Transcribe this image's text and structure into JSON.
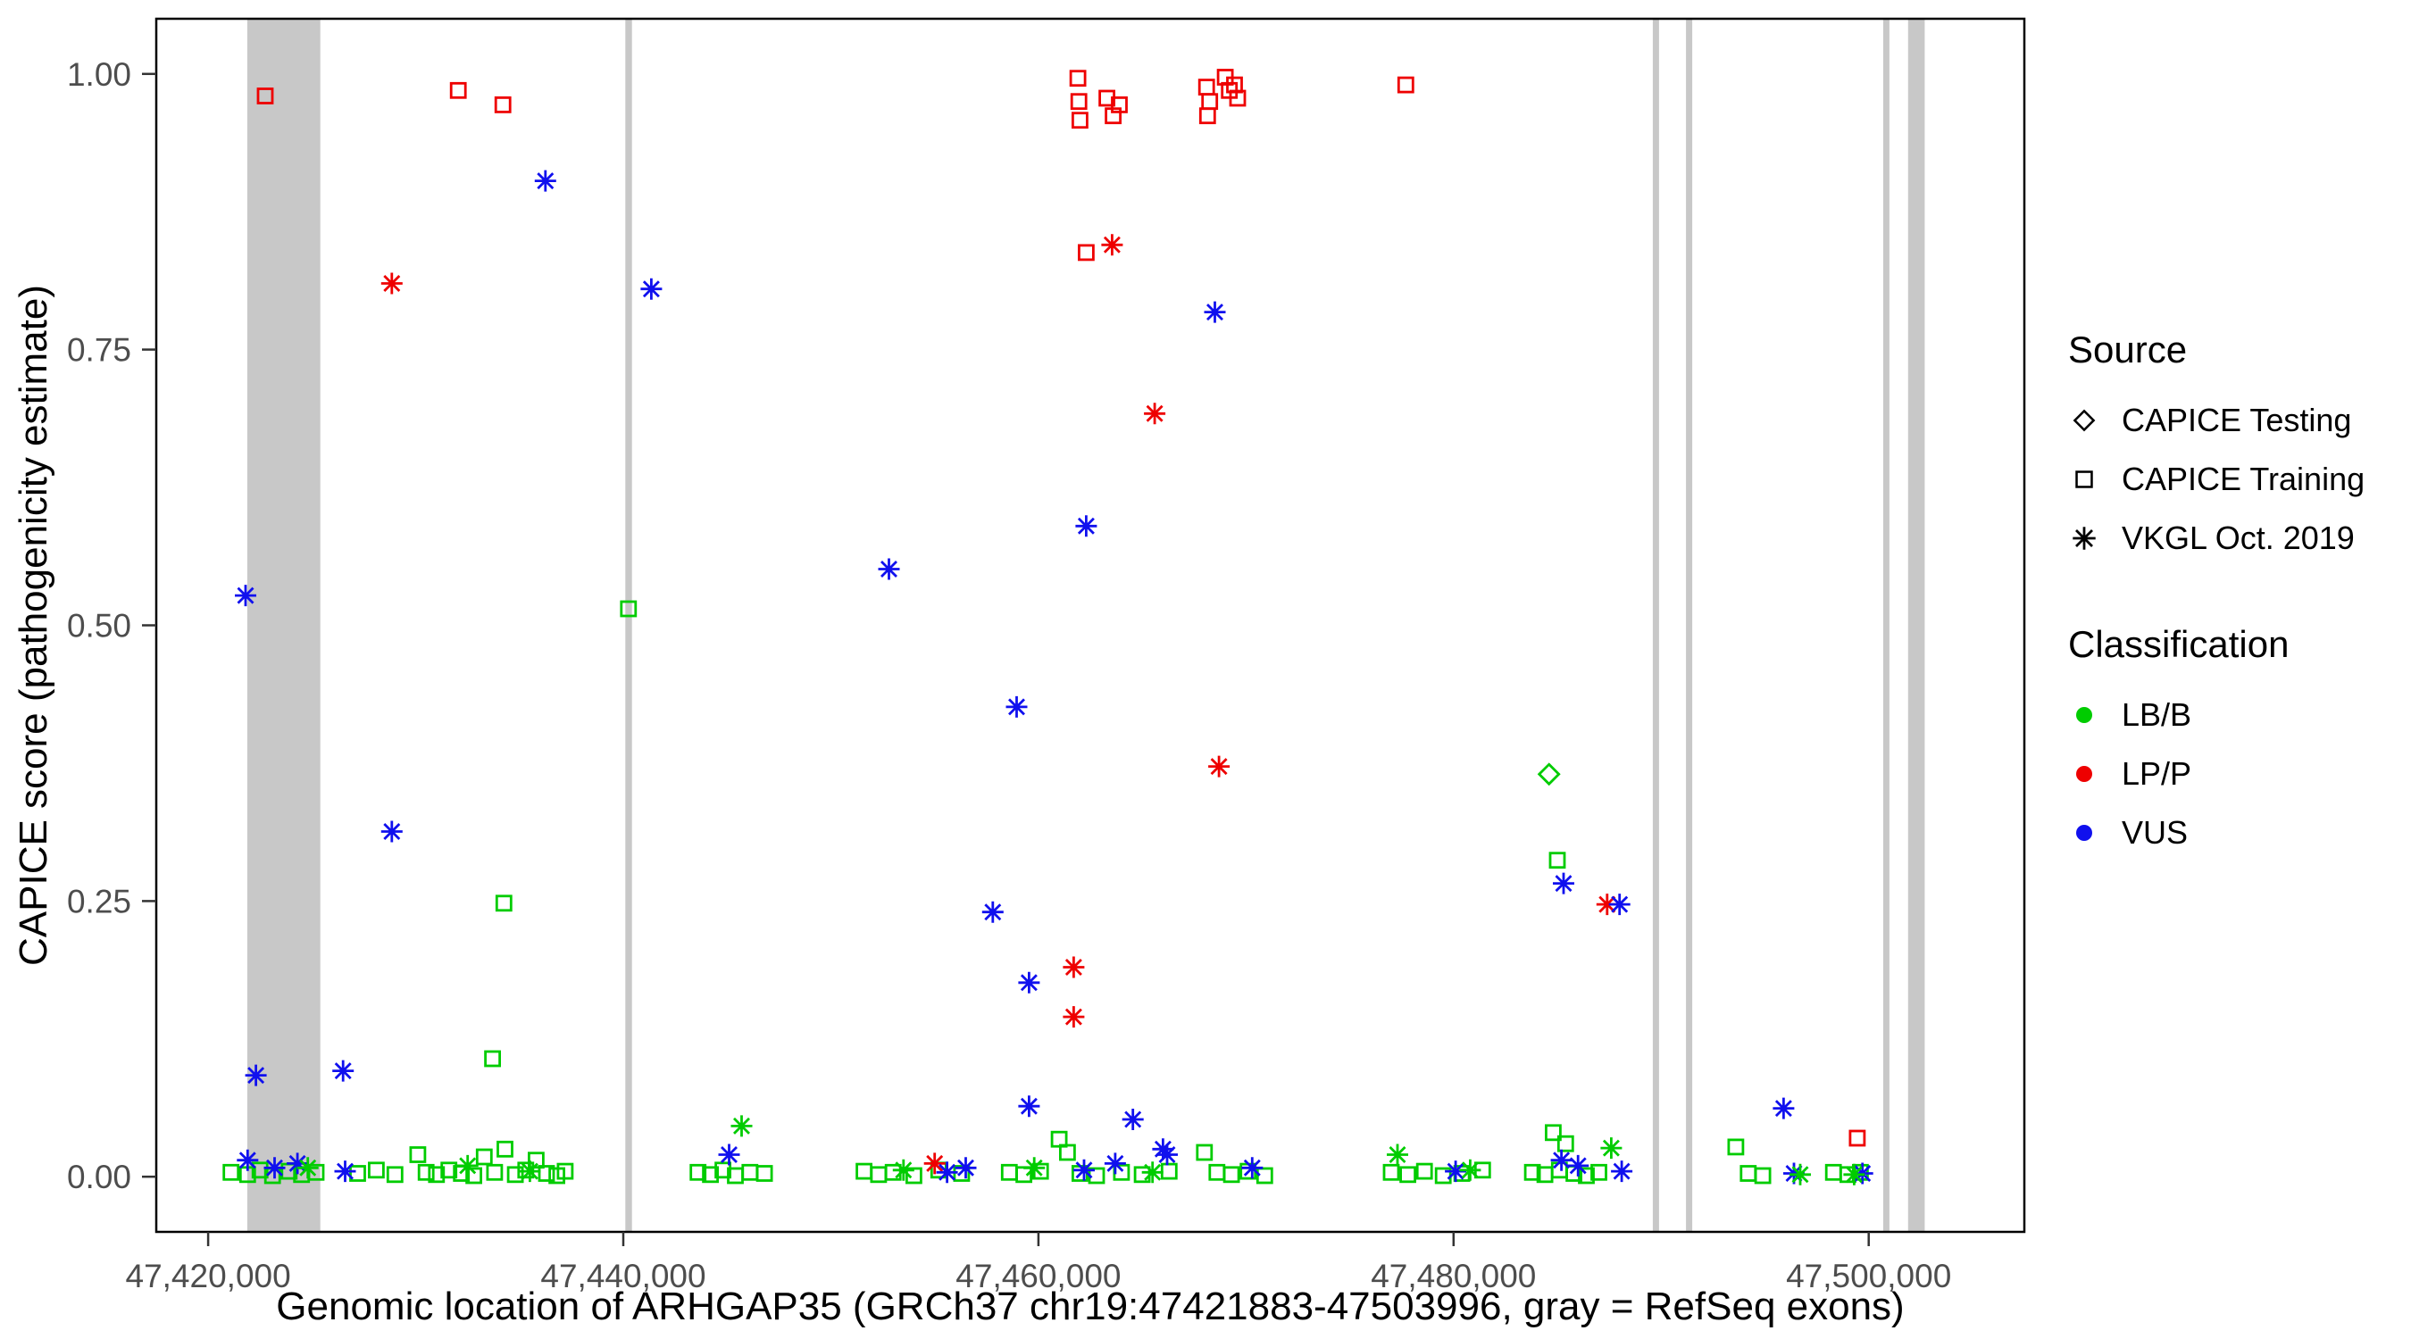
{
  "legend": {
    "source": {
      "title": "Source",
      "items": [
        {
          "label": "CAPICE Testing",
          "shape": "diamond"
        },
        {
          "label": "CAPICE Training",
          "shape": "square"
        },
        {
          "label": "VKGL Oct. 2019",
          "shape": "asterisk"
        }
      ]
    },
    "classification": {
      "title": "Classification",
      "items": [
        {
          "label": "LB/B",
          "color": "#00CC00"
        },
        {
          "label": "LP/P",
          "color": "#EE0000"
        },
        {
          "label": "VUS",
          "color": "#1010EE"
        }
      ]
    }
  },
  "chart_data": {
    "type": "scatter",
    "title": "",
    "xlabel": "Genomic location of ARHGAP35 (GRCh37 chr19:47421883-47503996, gray = RefSeq exons)",
    "ylabel": "CAPICE score (pathogenicity estimate)",
    "xlim": [
      47417500,
      47507500
    ],
    "ylim": [
      -0.05,
      1.05
    ],
    "grid": false,
    "legend_position": "right",
    "x_ticks": [
      {
        "value": 47420000,
        "label": "47,420,000"
      },
      {
        "value": 47440000,
        "label": "47,440,000"
      },
      {
        "value": 47460000,
        "label": "47,460,000"
      },
      {
        "value": 47480000,
        "label": "47,480,000"
      },
      {
        "value": 47500000,
        "label": "47,500,000"
      }
    ],
    "y_ticks": [
      {
        "value": 0.0,
        "label": "0.00"
      },
      {
        "value": 0.25,
        "label": "0.25"
      },
      {
        "value": 0.5,
        "label": "0.50"
      },
      {
        "value": 0.75,
        "label": "0.75"
      },
      {
        "value": 1.0,
        "label": "1.00"
      }
    ],
    "band_color": "#C8C8C8",
    "exon_bands": [
      [
        47421883,
        47425400
      ],
      [
        47440100,
        47440420
      ],
      [
        47489600,
        47489900
      ],
      [
        47491200,
        47491500
      ],
      [
        47500700,
        47501000
      ],
      [
        47501900,
        47502700
      ]
    ],
    "colors": {
      "LB/B": "#00CC00",
      "LP/P": "#EE0000",
      "VUS": "#1010EE"
    },
    "shape_by_source": {
      "CAPICE Testing": "diamond",
      "CAPICE Training": "square",
      "VKGL Oct. 2019": "asterisk"
    },
    "series": [
      {
        "source": "CAPICE Training",
        "classification": "LP/P",
        "shape": "square",
        "points": [
          [
            47422750,
            0.98
          ],
          [
            47432050,
            0.985
          ],
          [
            47434200,
            0.972
          ],
          [
            47461900,
            0.996
          ],
          [
            47461950,
            0.975
          ],
          [
            47462000,
            0.958
          ],
          [
            47463300,
            0.978
          ],
          [
            47463600,
            0.962
          ],
          [
            47463900,
            0.972
          ],
          [
            47468100,
            0.988
          ],
          [
            47468250,
            0.975
          ],
          [
            47468150,
            0.962
          ],
          [
            47469000,
            0.997
          ],
          [
            47469200,
            0.985
          ],
          [
            47469450,
            0.99
          ],
          [
            47469600,
            0.978
          ],
          [
            47477700,
            0.99
          ],
          [
            47462300,
            0.838
          ],
          [
            47499450,
            0.035
          ]
        ]
      },
      {
        "source": "CAPICE Training",
        "classification": "LB/B",
        "shape": "square",
        "points": [
          [
            47440250,
            0.515
          ],
          [
            47434250,
            0.248
          ],
          [
            47433700,
            0.107
          ],
          [
            47485000,
            0.287
          ],
          [
            47484800,
            0.04
          ],
          [
            47485400,
            0.03
          ],
          [
            47421100,
            0.004
          ],
          [
            47421900,
            0.002
          ],
          [
            47422500,
            0.006
          ],
          [
            47423100,
            0.001
          ],
          [
            47423900,
            0.005
          ],
          [
            47424500,
            0.002
          ],
          [
            47425200,
            0.004
          ],
          [
            47427200,
            0.003
          ],
          [
            47428100,
            0.006
          ],
          [
            47429000,
            0.002
          ],
          [
            47430100,
            0.02
          ],
          [
            47430500,
            0.004
          ],
          [
            47431000,
            0.002
          ],
          [
            47431600,
            0.006
          ],
          [
            47432200,
            0.003
          ],
          [
            47432800,
            0.001
          ],
          [
            47433300,
            0.018
          ],
          [
            47433800,
            0.004
          ],
          [
            47434300,
            0.025
          ],
          [
            47434800,
            0.002
          ],
          [
            47435300,
            0.006
          ],
          [
            47435800,
            0.015
          ],
          [
            47436300,
            0.003
          ],
          [
            47436800,
            0.001
          ],
          [
            47437200,
            0.005
          ],
          [
            47443600,
            0.004
          ],
          [
            47444200,
            0.002
          ],
          [
            47444800,
            0.006
          ],
          [
            47445400,
            0.001
          ],
          [
            47446100,
            0.004
          ],
          [
            47446800,
            0.003
          ],
          [
            47451600,
            0.005
          ],
          [
            47452300,
            0.002
          ],
          [
            47453000,
            0.004
          ],
          [
            47454000,
            0.001
          ],
          [
            47455200,
            0.006
          ],
          [
            47456300,
            0.003
          ],
          [
            47458600,
            0.004
          ],
          [
            47459300,
            0.002
          ],
          [
            47460100,
            0.005
          ],
          [
            47461000,
            0.034
          ],
          [
            47461400,
            0.022
          ],
          [
            47462000,
            0.003
          ],
          [
            47462800,
            0.001
          ],
          [
            47464000,
            0.004
          ],
          [
            47465000,
            0.002
          ],
          [
            47466300,
            0.005
          ],
          [
            47468000,
            0.022
          ],
          [
            47468600,
            0.004
          ],
          [
            47469300,
            0.002
          ],
          [
            47470100,
            0.005
          ],
          [
            47470900,
            0.001
          ],
          [
            47477000,
            0.004
          ],
          [
            47477800,
            0.002
          ],
          [
            47478600,
            0.005
          ],
          [
            47479500,
            0.001
          ],
          [
            47480400,
            0.003
          ],
          [
            47481400,
            0.006
          ],
          [
            47483800,
            0.004
          ],
          [
            47484400,
            0.002
          ],
          [
            47485100,
            0.006
          ],
          [
            47485800,
            0.003
          ],
          [
            47486400,
            0.001
          ],
          [
            47487000,
            0.004
          ],
          [
            47493600,
            0.027
          ],
          [
            47494200,
            0.003
          ],
          [
            47494900,
            0.001
          ],
          [
            47498300,
            0.004
          ],
          [
            47499000,
            0.002
          ],
          [
            47499600,
            0.004
          ]
        ]
      },
      {
        "source": "CAPICE Testing",
        "classification": "LB/B",
        "shape": "diamond",
        "points": [
          [
            47484600,
            0.365
          ]
        ]
      },
      {
        "source": "VKGL Oct. 2019",
        "classification": "LP/P",
        "shape": "asterisk",
        "points": [
          [
            47428850,
            0.81
          ],
          [
            47463550,
            0.845
          ],
          [
            47465600,
            0.692
          ],
          [
            47468700,
            0.372
          ],
          [
            47461700,
            0.19
          ],
          [
            47461700,
            0.145
          ],
          [
            47487400,
            0.247
          ],
          [
            47455000,
            0.012
          ]
        ]
      },
      {
        "source": "VKGL Oct. 2019",
        "classification": "VUS",
        "shape": "asterisk",
        "points": [
          [
            47421800,
            0.527
          ],
          [
            47436250,
            0.903
          ],
          [
            47441350,
            0.805
          ],
          [
            47428850,
            0.313
          ],
          [
            47426500,
            0.096
          ],
          [
            47422300,
            0.092
          ],
          [
            47452800,
            0.551
          ],
          [
            47458950,
            0.426
          ],
          [
            47462300,
            0.59
          ],
          [
            47468500,
            0.784
          ],
          [
            47457800,
            0.24
          ],
          [
            47459550,
            0.176
          ],
          [
            47459550,
            0.064
          ],
          [
            47464550,
            0.052
          ],
          [
            47466000,
            0.025
          ],
          [
            47485300,
            0.266
          ],
          [
            47488000,
            0.247
          ],
          [
            47495900,
            0.062
          ],
          [
            47445100,
            0.02
          ],
          [
            47421900,
            0.015
          ],
          [
            47423200,
            0.008
          ],
          [
            47424300,
            0.012
          ],
          [
            47426600,
            0.005
          ],
          [
            47455600,
            0.004
          ],
          [
            47456500,
            0.008
          ],
          [
            47462200,
            0.006
          ],
          [
            47463700,
            0.012
          ],
          [
            47466200,
            0.02
          ],
          [
            47470300,
            0.008
          ],
          [
            47480100,
            0.005
          ],
          [
            47485200,
            0.015
          ],
          [
            47486000,
            0.01
          ],
          [
            47488100,
            0.005
          ],
          [
            47496400,
            0.003
          ],
          [
            47499700,
            0.003
          ]
        ]
      },
      {
        "source": "VKGL Oct. 2019",
        "classification": "LB/B",
        "shape": "asterisk",
        "points": [
          [
            47445700,
            0.046
          ],
          [
            47424800,
            0.008
          ],
          [
            47432500,
            0.01
          ],
          [
            47435500,
            0.005
          ],
          [
            47453500,
            0.006
          ],
          [
            47459800,
            0.008
          ],
          [
            47465500,
            0.004
          ],
          [
            47477300,
            0.02
          ],
          [
            47480800,
            0.006
          ],
          [
            47487600,
            0.026
          ],
          [
            47496700,
            0.002
          ],
          [
            47499300,
            0.002
          ]
        ]
      }
    ]
  }
}
